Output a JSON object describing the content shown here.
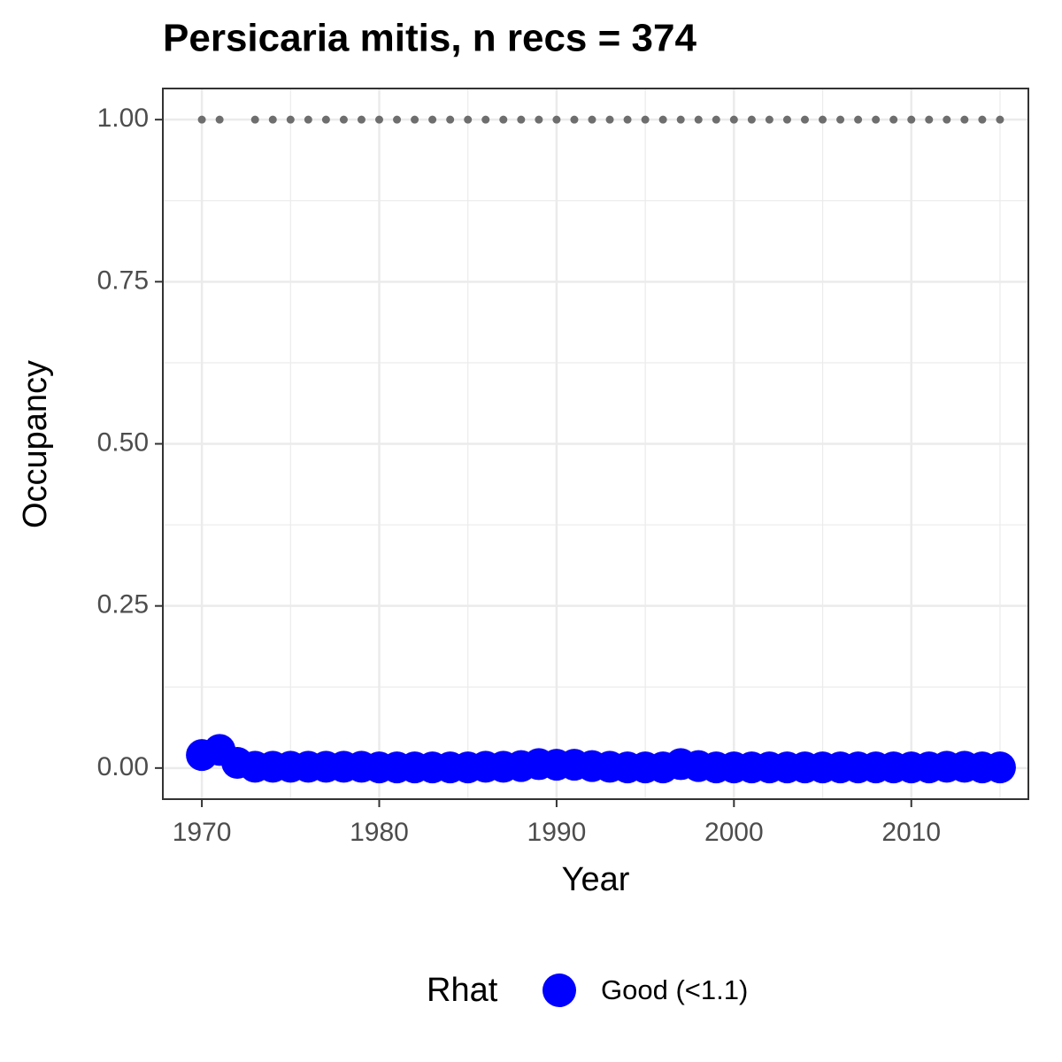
{
  "chart_data": {
    "type": "scatter",
    "title": "Persicaria mitis, n recs = 374",
    "xlabel": "Year",
    "ylabel": "Occupancy",
    "x": [
      1970,
      1971,
      1972,
      1973,
      1974,
      1975,
      1976,
      1977,
      1978,
      1979,
      1980,
      1981,
      1982,
      1983,
      1984,
      1985,
      1986,
      1987,
      1988,
      1989,
      1990,
      1991,
      1992,
      1993,
      1994,
      1995,
      1996,
      1997,
      1998,
      1999,
      2000,
      2001,
      2002,
      2003,
      2004,
      2005,
      2006,
      2007,
      2008,
      2009,
      2010,
      2011,
      2012,
      2013,
      2014,
      2015
    ],
    "series": [
      {
        "color": "#6e6e6e",
        "values": [
          1,
          1,
          null,
          1,
          1,
          1,
          1,
          1,
          1,
          1,
          1,
          1,
          1,
          1,
          1,
          1,
          1,
          1,
          1,
          1,
          1,
          1,
          1,
          1,
          1,
          1,
          1,
          1,
          1,
          1,
          1,
          1,
          1,
          1,
          1,
          1,
          1,
          1,
          1,
          1,
          1,
          1,
          1,
          1,
          1,
          1
        ]
      },
      {
        "name": "Good (<1.1)",
        "color": "#0000ff",
        "values": [
          0.02,
          0.028,
          0.008,
          0.002,
          0.002,
          0.002,
          0.002,
          0.002,
          0.002,
          0.002,
          0.001,
          0.001,
          0.001,
          0.001,
          0.001,
          0.001,
          0.002,
          0.002,
          0.003,
          0.006,
          0.005,
          0.005,
          0.003,
          0.002,
          0.001,
          0.001,
          0.001,
          0.006,
          0.003,
          0.001,
          0.001,
          0.001,
          0.001,
          0.001,
          0.001,
          0.001,
          0.001,
          0.001,
          0.001,
          0.001,
          0.001,
          0.001,
          0.002,
          0.002,
          0.001,
          0.001
        ]
      }
    ],
    "legend_title": "Rhat",
    "legend": "bottom",
    "xlim": [
      1967.8,
      2016.6
    ],
    "xticks": [
      1970,
      1980,
      1990,
      2000,
      2010
    ],
    "xminor": [
      1975,
      1985,
      1995,
      2005,
      2015
    ],
    "ylim": [
      -0.048,
      1.048
    ],
    "yticks": [
      {
        "value": 0,
        "label": "0.00"
      },
      {
        "value": 0.25,
        "label": "0.25"
      },
      {
        "value": 0.5,
        "label": "0.50"
      },
      {
        "value": 0.75,
        "label": "0.75"
      },
      {
        "value": 1,
        "label": "1.00"
      }
    ],
    "yminor": [
      0.125,
      0.375,
      0.625,
      0.875
    ],
    "grid": true
  }
}
